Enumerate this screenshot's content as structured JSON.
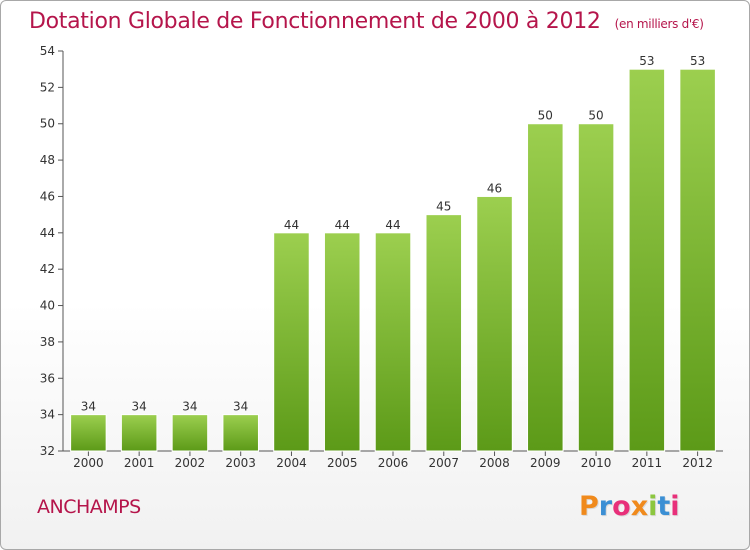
{
  "header": {
    "title": "Dotation Globale de Fonctionnement de 2000 à 2012",
    "subtitle": "(en milliers d'€)"
  },
  "footer": {
    "commune": "ANCHAMPS",
    "logo_text": "Proxiti"
  },
  "colors": {
    "title": "#b5154b",
    "bar_top": "#9ccf4f",
    "bar_bottom": "#5c9a18",
    "axis": "#555555",
    "logo": [
      "#f08a1c",
      "#3b8fd4",
      "#e8307a",
      "#f08a1c",
      "#8cc63f",
      "#3b8fd4",
      "#e8307a"
    ]
  },
  "chart_data": {
    "type": "bar",
    "categories": [
      "2000",
      "2001",
      "2002",
      "2003",
      "2004",
      "2005",
      "2006",
      "2007",
      "2008",
      "2009",
      "2010",
      "2011",
      "2012"
    ],
    "values": [
      34,
      34,
      34,
      34,
      44,
      44,
      44,
      45,
      46,
      50,
      50,
      53,
      53
    ],
    "data_labels": [
      "34",
      "34",
      "34",
      "34",
      "44",
      "44",
      "44",
      "45",
      "46",
      "50",
      "50",
      "53",
      "53"
    ],
    "ylim": [
      32,
      54
    ],
    "yticks": [
      "32",
      "34",
      "36",
      "38",
      "40",
      "42",
      "44",
      "46",
      "48",
      "50",
      "52",
      "54"
    ],
    "grid": false,
    "legend": "none"
  }
}
